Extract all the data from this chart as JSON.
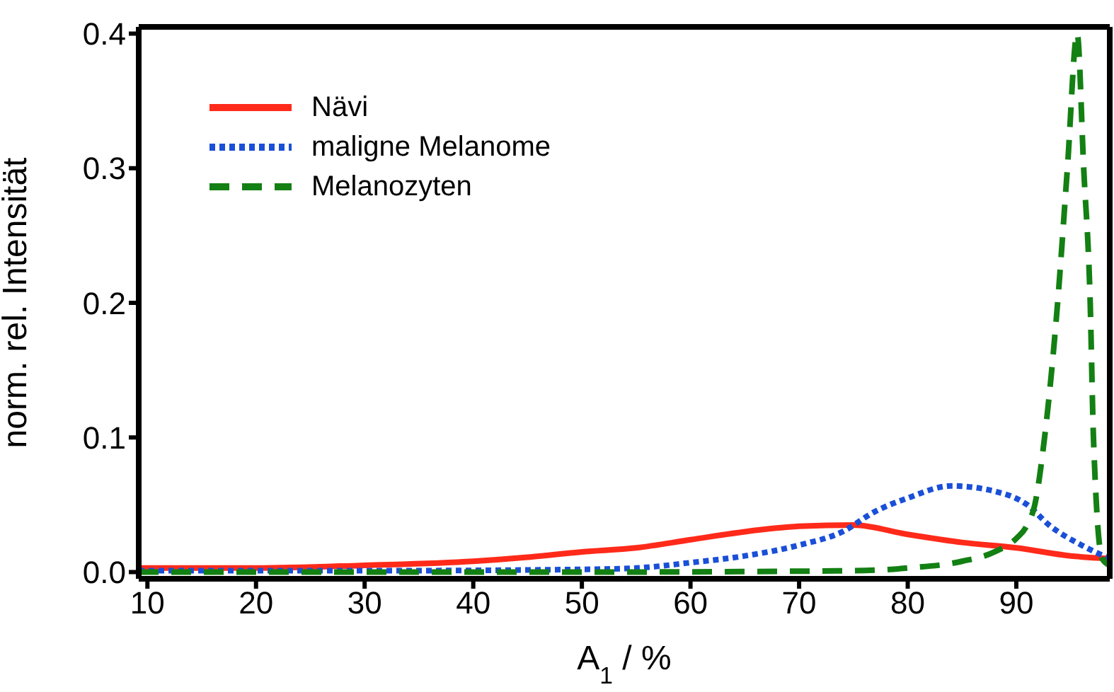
{
  "chart_data": {
    "type": "line",
    "xlabel": "A$_{1}$ / %",
    "ylabel": "norm. rel. Intensität",
    "xlim": [
      9.2,
      98.6
    ],
    "ylim": [
      -0.005,
      0.405
    ],
    "xticks": [
      10,
      20,
      30,
      40,
      50,
      60,
      70,
      80,
      90
    ],
    "yticks": [
      {
        "value": 0,
        "label": "0.0"
      },
      {
        "value": 0.1,
        "label": "0.1"
      },
      {
        "value": 0.2,
        "label": "0.2"
      },
      {
        "value": 0.3,
        "label": "0.3"
      },
      {
        "value": 0.4,
        "label": "0.4"
      }
    ],
    "legend": "top left",
    "series": [
      {
        "name": "Nävi",
        "color": "#ff2a1a",
        "line_style": "solid",
        "x": [
          9.2,
          20,
          30,
          40,
          45,
          50,
          55,
          60,
          65,
          70,
          75,
          80,
          85,
          90,
          95,
          98.6
        ],
        "values": [
          0.003,
          0.003,
          0.005,
          0.008,
          0.011,
          0.015,
          0.018,
          0.024,
          0.03,
          0.034,
          0.035,
          0.028,
          0.022,
          0.018,
          0.012,
          0.01
        ]
      },
      {
        "name": "maligne Melanome",
        "color": "#1a4fd8",
        "line_style": "dotted",
        "x": [
          9.2,
          30,
          50,
          55,
          60,
          65,
          70,
          74,
          77,
          80,
          84,
          88,
          91,
          93,
          96,
          98.6
        ],
        "values": [
          0.001,
          0.001,
          0.002,
          0.003,
          0.007,
          0.012,
          0.02,
          0.03,
          0.045,
          0.055,
          0.064,
          0.06,
          0.05,
          0.035,
          0.02,
          0.01
        ]
      },
      {
        "name": "Melanozyten",
        "color": "#138013",
        "line_style": "dashed",
        "x": [
          9.2,
          50,
          75,
          80,
          85,
          88,
          90,
          91,
          91.7,
          92.6,
          93.8,
          94.7,
          95.6,
          96.2,
          96.8,
          97.1,
          97.9,
          98.6
        ],
        "values": [
          0,
          0,
          0.001,
          0.003,
          0.008,
          0.015,
          0.025,
          0.035,
          0.05,
          0.1,
          0.2,
          0.3,
          0.4,
          0.3,
          0.2,
          0.1,
          0.01,
          0.005
        ]
      }
    ]
  }
}
